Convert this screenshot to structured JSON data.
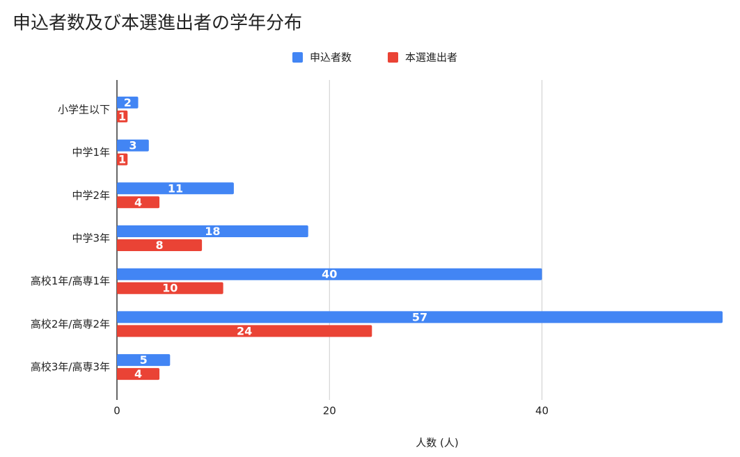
{
  "chart_data": {
    "type": "bar",
    "orientation": "horizontal",
    "title": "申込者数及び本選進出者の学年分布",
    "x_label": "人数 (人)",
    "categories": [
      "小学生以下",
      "中学1年",
      "中学2年",
      "中学3年",
      "高校1年/高専1年",
      "高校2年/高専2年",
      "高校3年/高専3年"
    ],
    "series": [
      {
        "name": "申込者数",
        "color": "#4285f4",
        "values": [
          2,
          3,
          11,
          18,
          40,
          57,
          5
        ]
      },
      {
        "name": "本選進出者",
        "color": "#ea4335",
        "values": [
          1,
          1,
          4,
          8,
          10,
          24,
          4
        ]
      }
    ],
    "xlim": [
      0,
      57
    ],
    "xticks": [
      0,
      20,
      40
    ],
    "grid": true,
    "legend": "top"
  }
}
